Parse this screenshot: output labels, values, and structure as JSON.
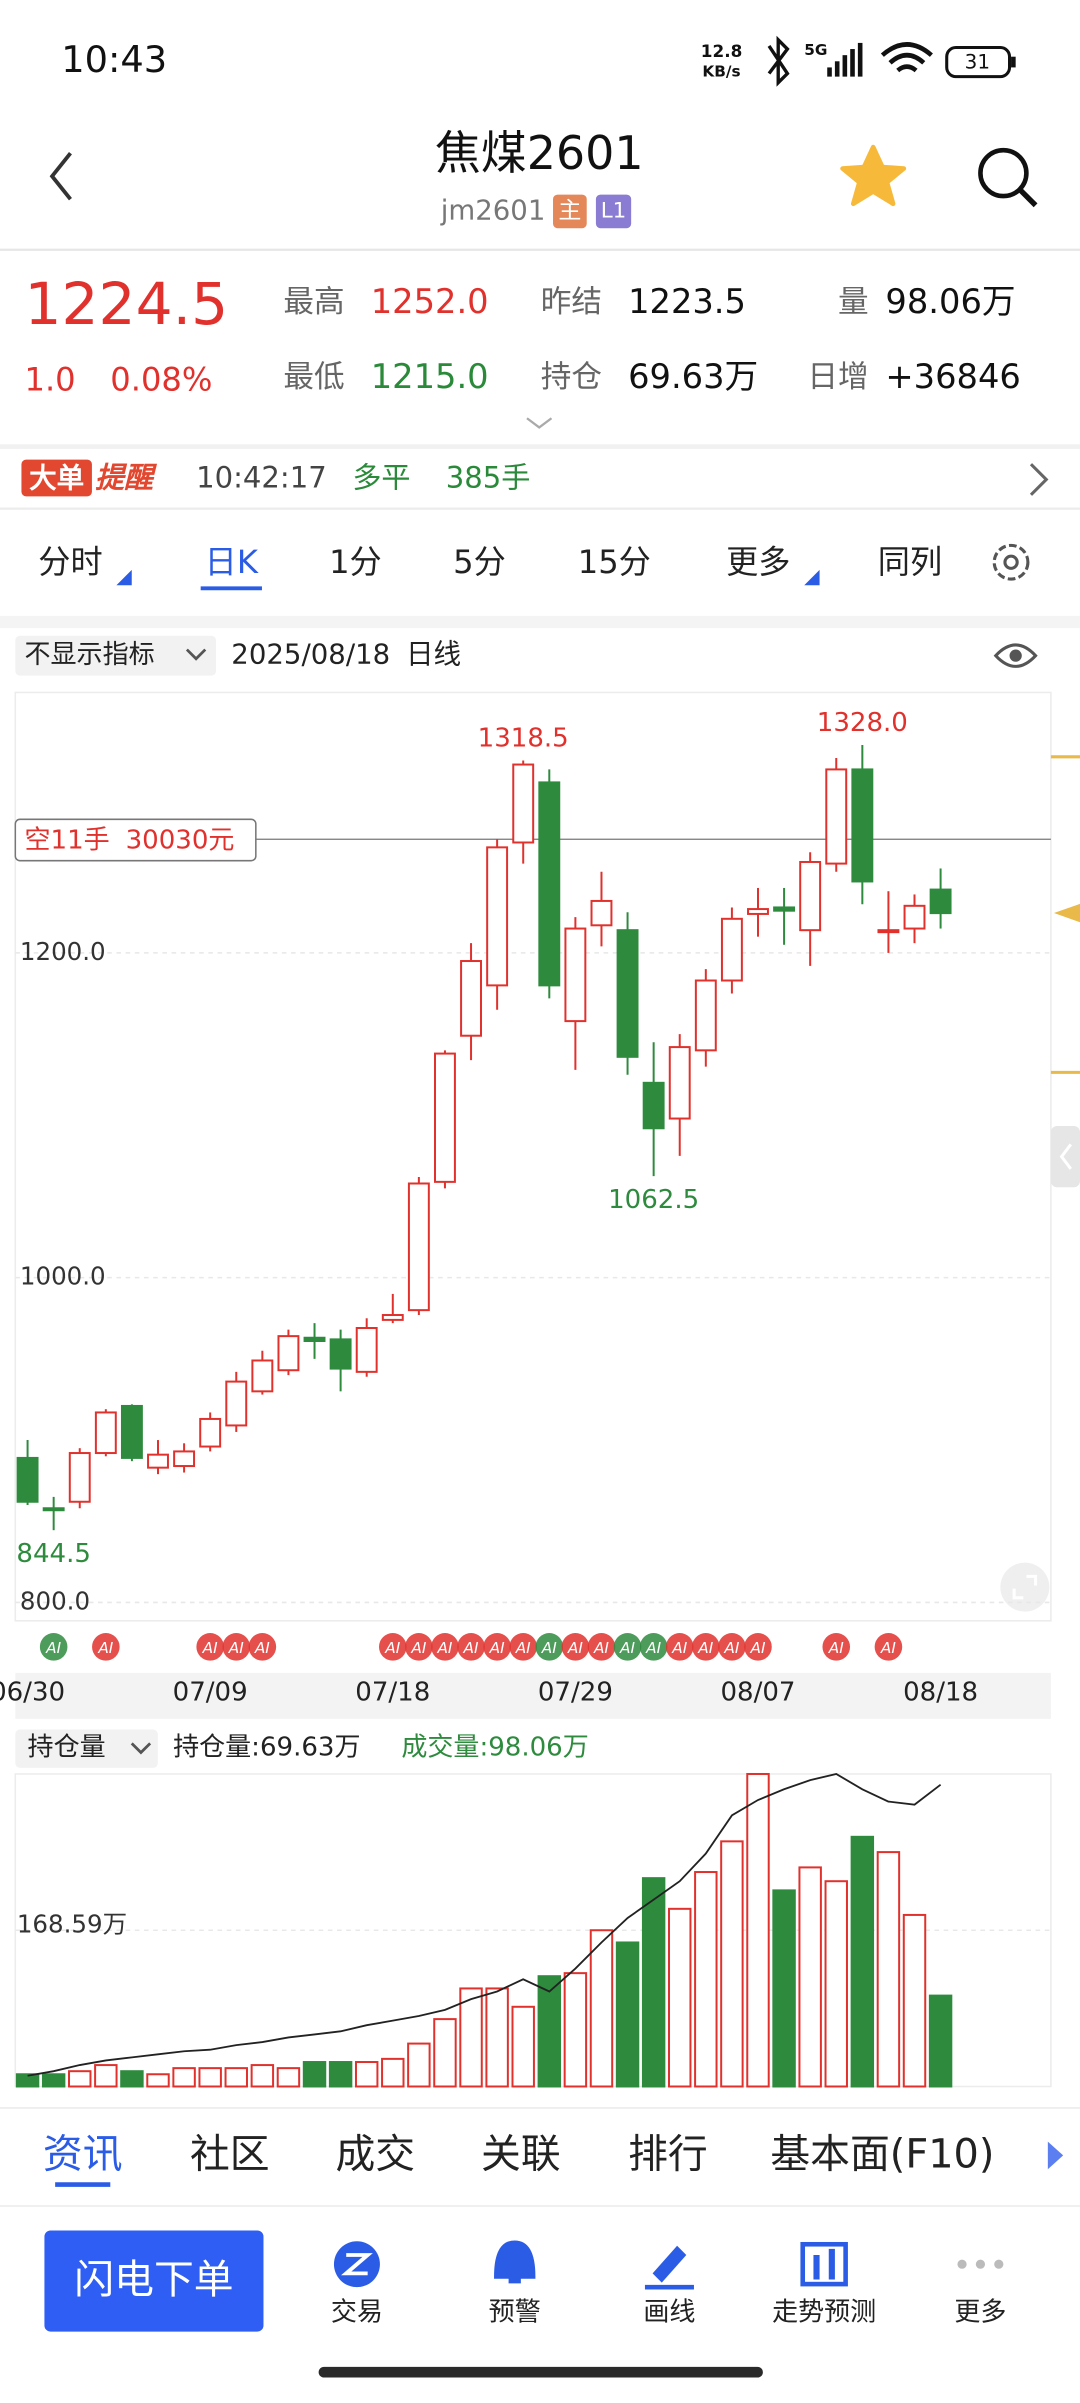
{
  "status_bar": {
    "time": "10:43",
    "net_speed": "12.8",
    "net_unit": "KB/s",
    "network": "5G",
    "battery": "31"
  },
  "header": {
    "title": "焦煤2601",
    "code": "jm2601",
    "tag_main": "主",
    "tag_level": "L1"
  },
  "quote": {
    "price": "1224.5",
    "change": "1.0",
    "change_pct": "0.08%",
    "stats": [
      {
        "label": "最高",
        "value": "1252.0"
      },
      {
        "label": "最低",
        "value": "1215.0"
      },
      {
        "label": "昨结",
        "value": "1223.5"
      },
      {
        "label": "持仓",
        "value": "69.63万"
      },
      {
        "label": "量",
        "value": "98.06万"
      },
      {
        "label": "日增",
        "value": "+36846"
      }
    ]
  },
  "alert": {
    "badge": "大单",
    "badge_text": "提醒",
    "time": "10:42:17",
    "action": "多平",
    "volume": "385手"
  },
  "period_tabs": [
    "分时",
    "日K",
    "1分",
    "5分",
    "15分",
    "更多",
    "同列"
  ],
  "chart_toolbar": {
    "indicator": "不显示指标",
    "date": "2025/08/18",
    "period": "日线"
  },
  "chart_data": [
    {
      "type": "candlestick",
      "categories": [
        "06/30",
        null,
        null,
        null,
        null,
        null,
        null,
        "07/09",
        null,
        null,
        null,
        null,
        null,
        null,
        "07/18",
        null,
        null,
        null,
        null,
        null,
        null,
        "07/29",
        null,
        null,
        null,
        null,
        null,
        null,
        "08/07",
        null,
        null,
        null,
        null,
        null,
        null,
        "08/18"
      ],
      "open": [
        889,
        858,
        862,
        892,
        921,
        883,
        884,
        896,
        909,
        930,
        943,
        963,
        962,
        942,
        974,
        980,
        1059,
        1149,
        1180,
        1268,
        1305,
        1158,
        1217,
        1214,
        1120,
        1098,
        1140,
        1183,
        1224,
        1228,
        1214,
        1255,
        1313,
        1213,
        1215,
        1239
      ],
      "high": [
        900,
        865,
        895,
        919,
        922,
        900,
        898,
        917,
        942,
        955,
        968,
        972,
        968,
        975,
        990,
        1062,
        1140,
        1206,
        1270,
        1318.5,
        1313,
        1222,
        1250,
        1225,
        1145,
        1150,
        1190,
        1228,
        1240,
        1240,
        1262,
        1320,
        1328,
        1238,
        1236,
        1252
      ],
      "low": [
        860,
        844.5,
        858,
        890,
        887,
        879,
        880,
        893,
        905,
        928,
        940,
        950,
        930,
        939,
        972,
        977,
        1055,
        1134,
        1165,
        1255,
        1172,
        1128,
        1204,
        1125,
        1062.5,
        1075,
        1130,
        1175,
        1210,
        1205,
        1192,
        1250,
        1230,
        1200,
        1206,
        1215
      ],
      "close": [
        862,
        857,
        892,
        917,
        889,
        891,
        893,
        913,
        936,
        949,
        964,
        961,
        944,
        969,
        977,
        1058,
        1138,
        1195,
        1265,
        1316,
        1180,
        1215,
        1232,
        1136,
        1092,
        1142,
        1183,
        1221,
        1227,
        1226,
        1256,
        1313,
        1244,
        1214,
        1229,
        1224.5
      ],
      "up_color": "#e0312d",
      "down_color": "#2e8b3e",
      "ylim": [
        788.7,
        1360.4
      ],
      "yticks": [
        {
          "value": 800,
          "label": "800.0"
        },
        {
          "value": 1000,
          "label": "1000.0"
        },
        {
          "value": 1200,
          "label": "1200.0"
        }
      ],
      "grid": true,
      "annotations": [
        {
          "value": 1318.5,
          "label": "1318.5"
        },
        {
          "value": 1328,
          "label": "1328.0"
        },
        {
          "value": 1062.5,
          "label": "1062.5"
        },
        {
          "value": 844.5,
          "label": "844.5"
        }
      ],
      "position": {
        "label": "空11手",
        "amount": "30030元",
        "price": 1270
      },
      "ai_badge": "AI",
      "ai": [
        false,
        true,
        false,
        true,
        false,
        false,
        false,
        true,
        true,
        true,
        false,
        false,
        false,
        false,
        true,
        true,
        true,
        true,
        true,
        true,
        true,
        true,
        true,
        true,
        true,
        true,
        true,
        true,
        true,
        false,
        false,
        true,
        false,
        true,
        false,
        false
      ]
    },
    {
      "type": "bar",
      "selector": "持仓量",
      "oi_label": "持仓量:69.63万",
      "volume_label": "成交量:98.06万",
      "values": [
        13.2,
        13.2,
        16.5,
        23.1,
        16.5,
        13.2,
        19.8,
        19.8,
        19.8,
        23.1,
        19.8,
        26.4,
        26.4,
        26.4,
        29.8,
        46.3,
        72.7,
        105.8,
        105.8,
        86,
        119,
        122.3,
        168.6,
        155.4,
        224.8,
        191.7,
        231.4,
        264.5,
        337.2,
        211.6,
        236.4,
        221.5,
        269.4,
        252.9,
        185.1,
        98.06
      ],
      "ylim": [
        0,
        337.2
      ],
      "yticks": [
        {
          "value": 168.59,
          "label": "168.59万"
        }
      ],
      "oi_values": [
        41.05,
        41.5,
        42.11,
        42.56,
        42.86,
        43.16,
        43.46,
        43.61,
        44.06,
        44.36,
        44.81,
        45.11,
        45.41,
        46.02,
        46.47,
        46.92,
        47.52,
        48.57,
        49.32,
        50.53,
        49.32,
        51.58,
        54.14,
        56.54,
        58.35,
        60.15,
        62.86,
        66.62,
        68.12,
        69.18,
        70.08,
        70.68,
        69.18,
        67.97,
        67.67,
        69.63
      ],
      "y2lim": [
        40,
        70.68
      ],
      "line_color": "#222222"
    }
  ],
  "info_tabs": [
    "资讯",
    "社区",
    "成交",
    "关联",
    "排行",
    "基本面(F10)"
  ],
  "bottom_nav": {
    "button": "闪电下单",
    "items": [
      "交易",
      "预警",
      "画线",
      "走势预测",
      "更多"
    ]
  }
}
